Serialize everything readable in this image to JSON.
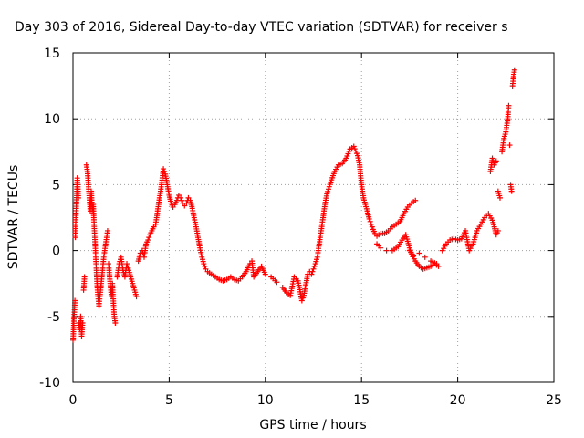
{
  "chart_data": {
    "type": "scatter",
    "title": "Day 303 of 2016, Sidereal Day-to-day VTEC variation (SDTVAR) for receiver s",
    "xlabel": "GPS time / hours",
    "ylabel": "SDTVAR / TECUs",
    "xlim": [
      0,
      25
    ],
    "ylim": [
      -10,
      15
    ],
    "xticks": [
      "0",
      "5",
      "10",
      "15",
      "20",
      "25"
    ],
    "yticks": [
      "-10",
      "-5",
      "0",
      "5",
      "10",
      "15"
    ],
    "grid": true,
    "marker": "plus",
    "color": "#ff0000",
    "series": [
      {
        "values": [
          [
            0.0,
            -6.8
          ],
          [
            0.03,
            -6.0
          ],
          [
            0.05,
            -5.2
          ],
          [
            0.08,
            -4.5
          ],
          [
            0.1,
            -3.8
          ],
          [
            0.12,
            1.0
          ],
          [
            0.15,
            2.5
          ],
          [
            0.17,
            3.2
          ],
          [
            0.2,
            4.5
          ],
          [
            0.22,
            5.5
          ],
          [
            0.25,
            5.0
          ],
          [
            0.28,
            4.0
          ],
          [
            0.3,
            -5.5
          ],
          [
            0.35,
            -6.0
          ],
          [
            0.4,
            -5.0
          ],
          [
            0.45,
            -6.5
          ],
          [
            0.5,
            -5.5
          ],
          [
            0.55,
            -3.0
          ],
          [
            0.6,
            -2.0
          ],
          [
            0.7,
            6.5
          ],
          [
            0.75,
            6.0
          ],
          [
            0.8,
            5.0
          ],
          [
            0.85,
            4.0
          ],
          [
            0.9,
            3.0
          ],
          [
            0.95,
            4.5
          ],
          [
            1.0,
            3.0
          ],
          [
            1.05,
            3.5
          ],
          [
            1.1,
            2.0
          ],
          [
            1.15,
            0.5
          ],
          [
            1.2,
            -1.0
          ],
          [
            1.25,
            -2.5
          ],
          [
            1.3,
            -3.5
          ],
          [
            1.35,
            -4.2
          ],
          [
            1.4,
            -3.5
          ],
          [
            1.5,
            -2.0
          ],
          [
            1.6,
            -0.5
          ],
          [
            1.7,
            0.5
          ],
          [
            1.8,
            1.5
          ],
          [
            1.85,
            -1.0
          ],
          [
            1.9,
            -2.0
          ],
          [
            2.0,
            -3.5
          ],
          [
            2.05,
            -2.5
          ],
          [
            2.1,
            -4.0
          ],
          [
            2.15,
            -5.0
          ],
          [
            2.2,
            -5.5
          ],
          [
            2.3,
            -2.0
          ],
          [
            2.4,
            -1.0
          ],
          [
            2.5,
            -0.5
          ],
          [
            2.6,
            -1.5
          ],
          [
            2.7,
            -2.0
          ],
          [
            2.8,
            -1.0
          ],
          [
            2.9,
            -1.5
          ],
          [
            3.0,
            -2.0
          ],
          [
            3.1,
            -2.5
          ],
          [
            3.2,
            -3.0
          ],
          [
            3.3,
            -3.5
          ],
          [
            3.4,
            -0.8
          ],
          [
            3.5,
            -0.2
          ],
          [
            3.6,
            0.0
          ],
          [
            3.7,
            -0.5
          ],
          [
            3.8,
            0.5
          ],
          [
            3.9,
            0.8
          ],
          [
            4.0,
            1.2
          ],
          [
            4.1,
            1.5
          ],
          [
            4.2,
            1.8
          ],
          [
            4.3,
            2.0
          ],
          [
            4.4,
            3.0
          ],
          [
            4.5,
            4.0
          ],
          [
            4.6,
            5.0
          ],
          [
            4.7,
            6.2
          ],
          [
            4.8,
            5.8
          ],
          [
            4.9,
            5.0
          ],
          [
            5.0,
            4.2
          ],
          [
            5.1,
            3.6
          ],
          [
            5.2,
            3.3
          ],
          [
            5.3,
            3.5
          ],
          [
            5.4,
            3.8
          ],
          [
            5.5,
            4.2
          ],
          [
            5.6,
            4.0
          ],
          [
            5.7,
            3.6
          ],
          [
            5.8,
            3.4
          ],
          [
            5.9,
            3.6
          ],
          [
            6.0,
            4.0
          ],
          [
            6.1,
            3.8
          ],
          [
            6.2,
            3.2
          ],
          [
            6.3,
            2.5
          ],
          [
            6.4,
            1.8
          ],
          [
            6.5,
            1.0
          ],
          [
            6.6,
            0.2
          ],
          [
            6.7,
            -0.5
          ],
          [
            6.8,
            -1.0
          ],
          [
            6.9,
            -1.4
          ],
          [
            7.0,
            -1.6
          ],
          [
            7.2,
            -1.8
          ],
          [
            7.4,
            -2.0
          ],
          [
            7.6,
            -2.2
          ],
          [
            7.8,
            -2.3
          ],
          [
            8.0,
            -2.2
          ],
          [
            8.2,
            -2.0
          ],
          [
            8.4,
            -2.2
          ],
          [
            8.6,
            -2.3
          ],
          [
            8.8,
            -2.0
          ],
          [
            9.0,
            -1.6
          ],
          [
            9.2,
            -1.0
          ],
          [
            9.3,
            -0.8
          ],
          [
            9.4,
            -2.0
          ],
          [
            9.6,
            -1.6
          ],
          [
            9.8,
            -1.2
          ],
          [
            10.0,
            -1.8
          ],
          [
            10.3,
            -2.0
          ],
          [
            10.6,
            -2.4
          ],
          [
            10.9,
            -2.8
          ],
          [
            11.1,
            -3.2
          ],
          [
            11.3,
            -3.4
          ],
          [
            11.5,
            -2.0
          ],
          [
            11.7,
            -2.3
          ],
          [
            11.9,
            -3.8
          ],
          [
            12.0,
            -3.4
          ],
          [
            12.1,
            -2.6
          ],
          [
            12.2,
            -1.8
          ],
          [
            12.3,
            -1.6
          ],
          [
            12.4,
            -1.8
          ],
          [
            12.5,
            -1.4
          ],
          [
            12.6,
            -1.0
          ],
          [
            12.7,
            -0.5
          ],
          [
            12.8,
            0.5
          ],
          [
            12.9,
            1.5
          ],
          [
            13.0,
            2.5
          ],
          [
            13.1,
            3.5
          ],
          [
            13.2,
            4.3
          ],
          [
            13.4,
            5.2
          ],
          [
            13.6,
            6.0
          ],
          [
            13.8,
            6.5
          ],
          [
            14.0,
            6.6
          ],
          [
            14.2,
            7.0
          ],
          [
            14.4,
            7.7
          ],
          [
            14.6,
            7.9
          ],
          [
            14.8,
            7.2
          ],
          [
            14.9,
            6.5
          ],
          [
            15.0,
            5.0
          ],
          [
            15.1,
            4.0
          ],
          [
            15.2,
            3.5
          ],
          [
            15.3,
            3.0
          ],
          [
            15.4,
            2.4
          ],
          [
            15.5,
            2.0
          ],
          [
            15.6,
            1.6
          ],
          [
            15.7,
            1.3
          ],
          [
            15.8,
            1.1
          ],
          [
            15.9,
            1.2
          ],
          [
            16.0,
            1.3
          ],
          [
            16.2,
            1.3
          ],
          [
            16.4,
            1.5
          ],
          [
            16.6,
            1.8
          ],
          [
            16.8,
            2.0
          ],
          [
            17.0,
            2.2
          ],
          [
            17.2,
            2.8
          ],
          [
            17.4,
            3.3
          ],
          [
            17.6,
            3.6
          ],
          [
            17.8,
            3.8
          ],
          [
            15.8,
            0.5
          ],
          [
            16.0,
            0.2
          ],
          [
            16.3,
            0.0
          ],
          [
            16.6,
            0.0
          ],
          [
            16.9,
            0.3
          ],
          [
            17.1,
            0.8
          ],
          [
            17.3,
            1.2
          ],
          [
            17.4,
            0.7
          ],
          [
            17.5,
            0.2
          ],
          [
            17.6,
            -0.3
          ],
          [
            17.8,
            -0.8
          ],
          [
            18.0,
            -1.2
          ],
          [
            18.2,
            -1.4
          ],
          [
            18.4,
            -1.3
          ],
          [
            18.6,
            -1.2
          ],
          [
            18.8,
            -1.0
          ],
          [
            19.0,
            -1.2
          ],
          [
            17.5,
            0.0
          ],
          [
            17.7,
            -0.4
          ],
          [
            18.0,
            -0.2
          ],
          [
            18.3,
            -0.5
          ],
          [
            18.6,
            -0.8
          ],
          [
            18.9,
            -1.0
          ],
          [
            19.2,
            0.0
          ],
          [
            19.4,
            0.5
          ],
          [
            19.6,
            0.8
          ],
          [
            19.8,
            0.9
          ],
          [
            20.0,
            0.8
          ],
          [
            20.2,
            0.9
          ],
          [
            20.4,
            1.5
          ],
          [
            20.6,
            0.0
          ],
          [
            20.8,
            0.5
          ],
          [
            21.0,
            1.5
          ],
          [
            21.2,
            2.0
          ],
          [
            21.4,
            2.5
          ],
          [
            21.6,
            2.8
          ],
          [
            21.8,
            2.3
          ],
          [
            21.9,
            1.8
          ],
          [
            22.0,
            1.2
          ],
          [
            22.1,
            1.5
          ],
          [
            21.7,
            6.0
          ],
          [
            21.8,
            7.0
          ],
          [
            21.9,
            6.5
          ],
          [
            22.0,
            6.8
          ],
          [
            22.1,
            4.5
          ],
          [
            22.2,
            4.0
          ],
          [
            22.3,
            7.5
          ],
          [
            22.4,
            8.5
          ],
          [
            22.5,
            9.0
          ],
          [
            22.6,
            10.0
          ],
          [
            22.65,
            11.0
          ],
          [
            22.7,
            8.0
          ],
          [
            22.75,
            5.0
          ],
          [
            22.8,
            4.5
          ],
          [
            22.85,
            12.5
          ],
          [
            22.9,
            13.2
          ],
          [
            22.95,
            13.7
          ]
        ]
      }
    ]
  }
}
